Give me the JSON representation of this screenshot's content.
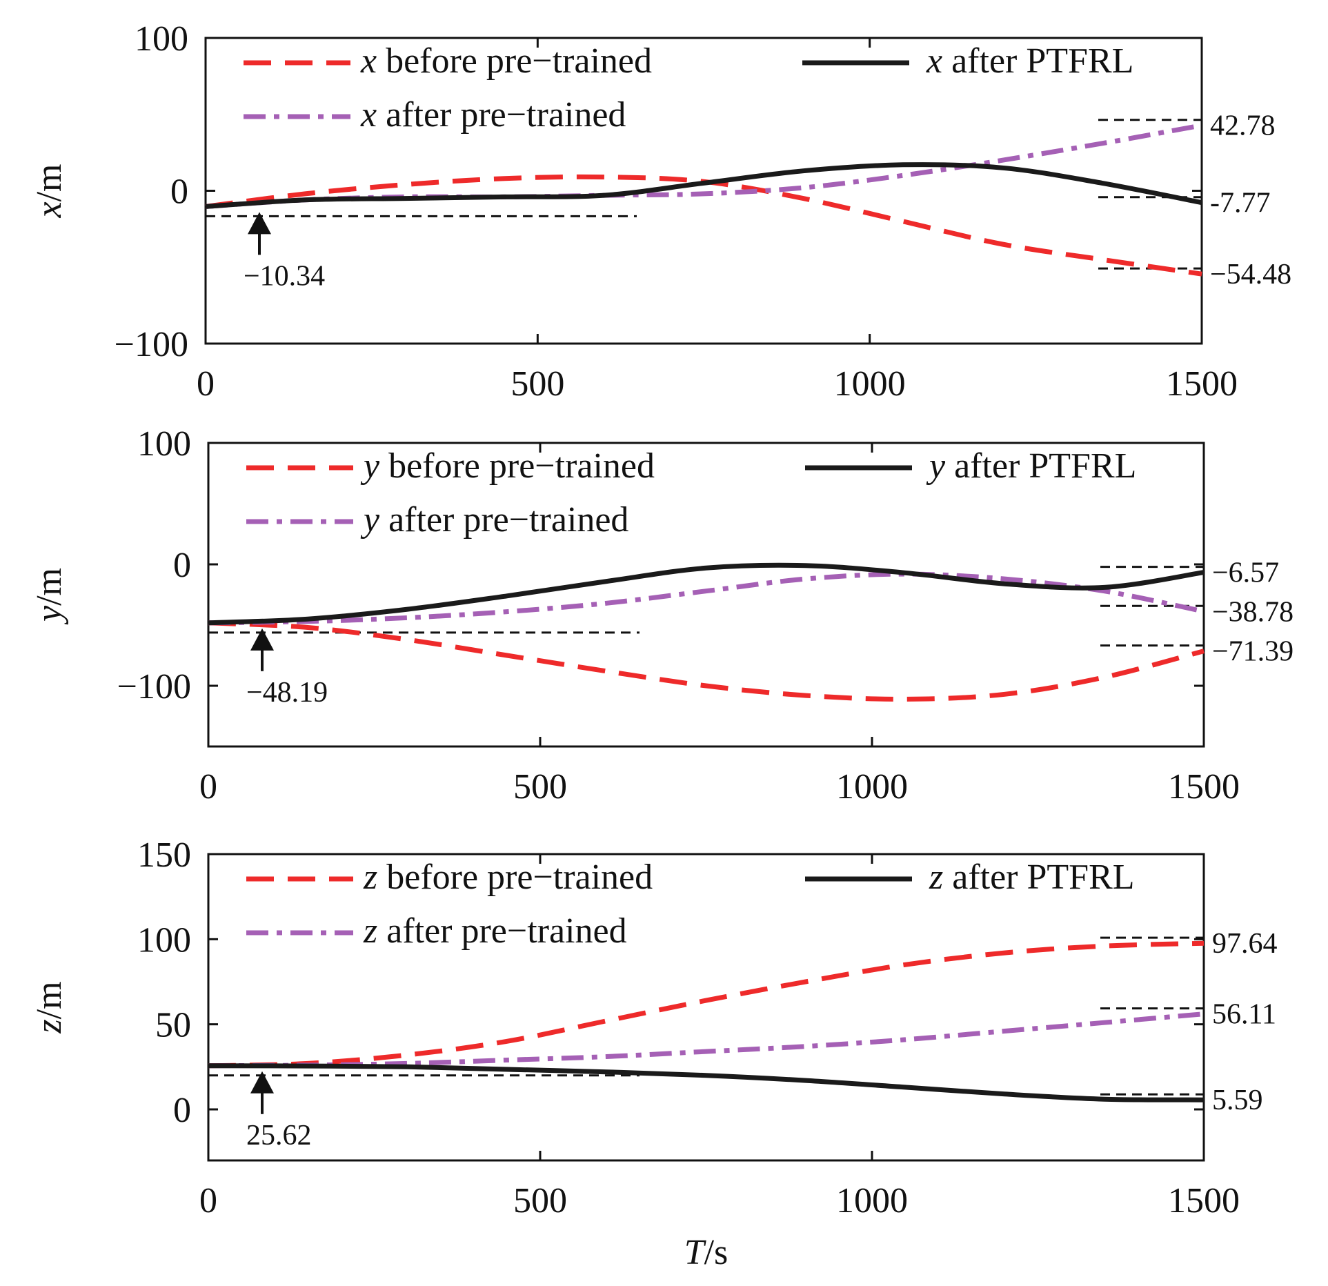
{
  "chart_data": [
    {
      "type": "line",
      "var": "x",
      "xlabel": "",
      "ylabel_var": "x",
      "ylabel_unit": "/m",
      "xlim": [
        0,
        1500
      ],
      "ylim": [
        -100,
        100
      ],
      "xticks": [
        "0",
        "500",
        "1000",
        "1500"
      ],
      "yticks": [
        "100",
        "0",
        "−100"
      ],
      "ytick_values": [
        100,
        0,
        -100
      ],
      "legend": [
        {
          "var": "x",
          "label": " before pre−trained"
        },
        {
          "var": "x",
          "label": " after PTFRL"
        },
        {
          "var": "x",
          "label": " after pre−trained"
        }
      ],
      "x": [
        0,
        150,
        300,
        450,
        600,
        750,
        900,
        1050,
        1200,
        1350,
        1500
      ],
      "series": [
        {
          "name": "before pre-trained",
          "values": [
            -10.34,
            -2,
            4,
            8,
            9,
            6,
            -5,
            -20,
            -35,
            -45,
            -54.48
          ]
        },
        {
          "name": "after pre-trained",
          "values": [
            -10.34,
            -6,
            -4,
            -4,
            -3,
            -2,
            2,
            10,
            20,
            31,
            42.78
          ]
        },
        {
          "name": "after PTFRL",
          "values": [
            -10.34,
            -6,
            -5,
            -4,
            -3,
            5,
            13,
            17,
            15,
            5,
            -7.77
          ]
        }
      ],
      "start_annotation": {
        "label": "−10.34",
        "value": -10.34
      },
      "end_annotations": [
        {
          "label": "42.78",
          "value": 42.78
        },
        {
          "label": "-7.77",
          "value": -7.77
        },
        {
          "label": "−54.48",
          "value": -54.48
        }
      ]
    },
    {
      "type": "line",
      "var": "y",
      "xlabel": "",
      "ylabel_var": "y",
      "ylabel_unit": "/m",
      "xlim": [
        0,
        1500
      ],
      "ylim": [
        -150,
        100
      ],
      "xticks": [
        "0",
        "500",
        "1000",
        "1500"
      ],
      "yticks": [
        "100",
        "0",
        "−100"
      ],
      "ytick_values": [
        100,
        0,
        -100
      ],
      "legend": [
        {
          "var": "y",
          "label": " before pre−trained"
        },
        {
          "var": "y",
          "label": " after PTFRL"
        },
        {
          "var": "y",
          "label": " after pre−trained"
        }
      ],
      "x": [
        0,
        150,
        300,
        450,
        600,
        750,
        900,
        1050,
        1200,
        1350,
        1500
      ],
      "series": [
        {
          "name": "before pre-trained",
          "values": [
            -48.19,
            -52,
            -62,
            -75,
            -88,
            -100,
            -108,
            -111,
            -107,
            -93,
            -71.39
          ]
        },
        {
          "name": "after pre-trained",
          "values": [
            -48.19,
            -47,
            -44,
            -39,
            -32,
            -22,
            -12,
            -8,
            -12,
            -22,
            -38.78
          ]
        },
        {
          "name": "after PTFRL",
          "values": [
            -48.19,
            -45,
            -37,
            -26,
            -14,
            -3,
            -1,
            -7,
            -16,
            -19,
            -6.57
          ]
        }
      ],
      "start_annotation": {
        "label": "−48.19",
        "value": -48.19
      },
      "end_annotations": [
        {
          "label": "−6.57",
          "value": -6.57
        },
        {
          "label": "−38.78",
          "value": -38.78
        },
        {
          "label": "−71.39",
          "value": -71.39
        }
      ]
    },
    {
      "type": "line",
      "var": "z",
      "xlabel_var": "T",
      "xlabel_unit": "/s",
      "ylabel_var": "z",
      "ylabel_unit": "/m",
      "xlim": [
        0,
        1500
      ],
      "ylim": [
        -30,
        150
      ],
      "xticks": [
        "0",
        "500",
        "1000",
        "1500"
      ],
      "yticks": [
        "150",
        "100",
        "50",
        "0"
      ],
      "ytick_values": [
        150,
        100,
        50,
        0
      ],
      "legend": [
        {
          "var": "z",
          "label": " before pre−trained"
        },
        {
          "var": "z",
          "label": " after PTFRL"
        },
        {
          "var": "z",
          "label": " after pre−trained"
        }
      ],
      "x": [
        0,
        150,
        300,
        450,
        600,
        750,
        900,
        1050,
        1200,
        1350,
        1500
      ],
      "series": [
        {
          "name": "before pre-trained",
          "values": [
            25.62,
            27,
            32,
            40,
            52,
            64,
            75,
            85,
            92,
            96,
            97.64
          ]
        },
        {
          "name": "after pre-trained",
          "values": [
            25.62,
            26,
            27,
            29,
            31,
            34,
            37,
            41,
            46,
            51,
            56.11
          ]
        },
        {
          "name": "after PTFRL",
          "values": [
            25.62,
            25.5,
            25,
            23.5,
            22,
            20,
            17,
            13,
            9,
            6,
            5.59
          ]
        }
      ],
      "start_annotation": {
        "label": "25.62",
        "value": 25.62
      },
      "end_annotations": [
        {
          "label": "97.64",
          "value": 97.64
        },
        {
          "label": "56.11",
          "value": 56.11
        },
        {
          "label": "5.59",
          "value": 5.59
        }
      ]
    }
  ],
  "colors": {
    "before": "#ee2a2a",
    "after_pretrained": "#a560b5",
    "after_ptfrl": "#1a1a1a",
    "axis": "#111111"
  }
}
